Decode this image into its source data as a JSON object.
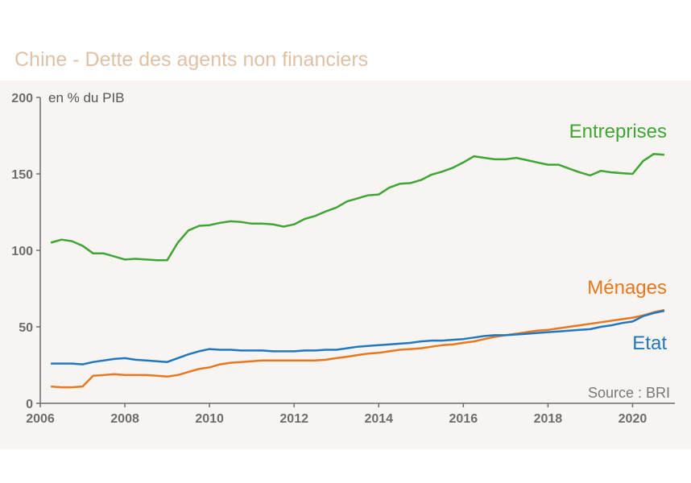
{
  "chart_data": {
    "type": "line",
    "title": "Chine - Dette des agents non financiers",
    "ylabel": "en % du PIB",
    "source": "Source : BRI",
    "xlim": [
      2006,
      2021
    ],
    "ylim": [
      0,
      200
    ],
    "xticks": [
      2006,
      2008,
      2010,
      2012,
      2014,
      2016,
      2018,
      2020
    ],
    "yticks": [
      0,
      50,
      100,
      150,
      200
    ],
    "series": [
      {
        "name": "Entreprises",
        "color": "#3fa535",
        "x": [
          2006.25,
          2006.5,
          2006.75,
          2007.0,
          2007.25,
          2007.5,
          2007.75,
          2008.0,
          2008.25,
          2008.5,
          2008.75,
          2009.0,
          2009.25,
          2009.5,
          2009.75,
          2010.0,
          2010.25,
          2010.5,
          2010.75,
          2011.0,
          2011.25,
          2011.5,
          2011.75,
          2012.0,
          2012.25,
          2012.5,
          2012.75,
          2013.0,
          2013.25,
          2013.5,
          2013.75,
          2014.0,
          2014.25,
          2014.5,
          2014.75,
          2015.0,
          2015.25,
          2015.5,
          2015.75,
          2016.0,
          2016.25,
          2016.5,
          2016.75,
          2017.0,
          2017.25,
          2017.5,
          2017.75,
          2018.0,
          2018.25,
          2018.5,
          2018.75,
          2019.0,
          2019.25,
          2019.5,
          2019.75,
          2020.0,
          2020.25,
          2020.5,
          2020.75
        ],
        "values": [
          105,
          107,
          106,
          103,
          98,
          98,
          96,
          94,
          94.5,
          94,
          93.5,
          93.5,
          105,
          113,
          116,
          116.5,
          118,
          119,
          118.5,
          117.5,
          117.5,
          117,
          115.5,
          117,
          120.5,
          122.5,
          125.5,
          128,
          132,
          134,
          136,
          136.5,
          141,
          143.5,
          144,
          146,
          149.5,
          151.5,
          154,
          157.5,
          161.5,
          160.5,
          159.5,
          159.5,
          160.5,
          159,
          157.5,
          156,
          156,
          153.5,
          151,
          149,
          152,
          151,
          150.5,
          150,
          158.5,
          163,
          162.5
        ]
      },
      {
        "name": "Ménages",
        "color": "#e8781f",
        "x": [
          2006.25,
          2006.5,
          2006.75,
          2007.0,
          2007.25,
          2007.5,
          2007.75,
          2008.0,
          2008.25,
          2008.5,
          2008.75,
          2009.0,
          2009.25,
          2009.5,
          2009.75,
          2010.0,
          2010.25,
          2010.5,
          2010.75,
          2011.0,
          2011.25,
          2011.5,
          2011.75,
          2012.0,
          2012.25,
          2012.5,
          2012.75,
          2013.0,
          2013.25,
          2013.5,
          2013.75,
          2014.0,
          2014.25,
          2014.5,
          2014.75,
          2015.0,
          2015.25,
          2015.5,
          2015.75,
          2016.0,
          2016.25,
          2016.5,
          2016.75,
          2017.0,
          2017.25,
          2017.5,
          2017.75,
          2018.0,
          2018.25,
          2018.5,
          2018.75,
          2019.0,
          2019.25,
          2019.5,
          2019.75,
          2020.0,
          2020.25,
          2020.5,
          2020.75
        ],
        "values": [
          11,
          10.5,
          10.5,
          11,
          18,
          18.5,
          19,
          18.5,
          18.5,
          18.5,
          18,
          17.5,
          18.5,
          20.5,
          22.5,
          23.5,
          25.5,
          26.5,
          27,
          27.5,
          28,
          28,
          28,
          28,
          28,
          28,
          28.5,
          29.5,
          30.5,
          31.5,
          32.5,
          33,
          34,
          35,
          35.5,
          36,
          37,
          38,
          38.5,
          39.5,
          40.5,
          42,
          43.5,
          44.5,
          45.5,
          46.5,
          47.5,
          48,
          49,
          50,
          51,
          52,
          53,
          54,
          55,
          56,
          57.5,
          59.5,
          61
        ]
      },
      {
        "name": "Etat",
        "color": "#1f78c1",
        "x": [
          2006.25,
          2006.5,
          2006.75,
          2007.0,
          2007.25,
          2007.5,
          2007.75,
          2008.0,
          2008.25,
          2008.5,
          2008.75,
          2009.0,
          2009.25,
          2009.5,
          2009.75,
          2010.0,
          2010.25,
          2010.5,
          2010.75,
          2011.0,
          2011.25,
          2011.5,
          2011.75,
          2012.0,
          2012.25,
          2012.5,
          2012.75,
          2013.0,
          2013.25,
          2013.5,
          2013.75,
          2014.0,
          2014.25,
          2014.5,
          2014.75,
          2015.0,
          2015.25,
          2015.5,
          2015.75,
          2016.0,
          2016.25,
          2016.5,
          2016.75,
          2017.0,
          2017.25,
          2017.5,
          2017.75,
          2018.0,
          2018.25,
          2018.5,
          2018.75,
          2019.0,
          2019.25,
          2019.5,
          2019.75,
          2020.0,
          2020.25,
          2020.5,
          2020.75
        ],
        "values": [
          26,
          26,
          26,
          25.5,
          27,
          28,
          29,
          29.5,
          28.5,
          28,
          27.5,
          27,
          29.5,
          32,
          34,
          35.5,
          35,
          35,
          34.5,
          34.5,
          34.5,
          34,
          34,
          34,
          34.5,
          34.5,
          35,
          35,
          36,
          37,
          37.5,
          38,
          38.5,
          39,
          39.5,
          40.5,
          41,
          41,
          41.5,
          42,
          43,
          44,
          44.5,
          44.5,
          45,
          45.5,
          46,
          46.5,
          47,
          47.5,
          48,
          48.5,
          50,
          51,
          52.5,
          53.5,
          57,
          59,
          60.5
        ]
      }
    ]
  }
}
